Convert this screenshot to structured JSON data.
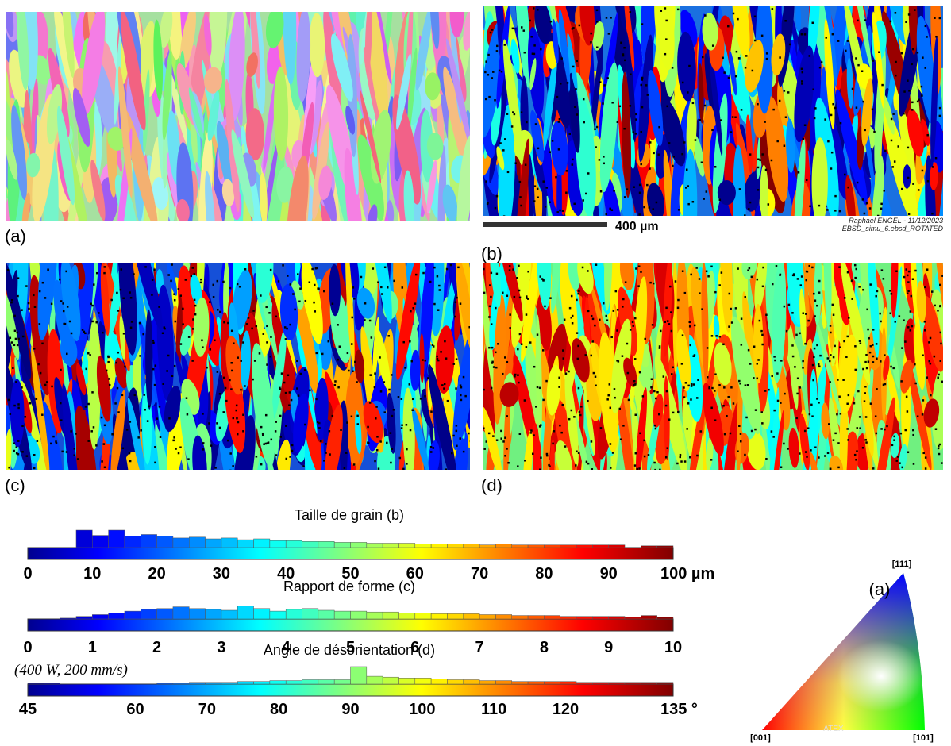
{
  "panels": [
    {
      "label": "(a)"
    },
    {
      "label": "(b)"
    },
    {
      "label": "(c)"
    },
    {
      "label": "(d)"
    }
  ],
  "scale_bar": {
    "label": "400 µm"
  },
  "credit": [
    "Raphael ENGEL - 11/12/2023",
    "EBSD_simu_6.ebsd_ROTATED"
  ],
  "colorbars": [
    {
      "title": "Taille de grain (b)",
      "lim": [
        0,
        100
      ],
      "ticks": [
        0,
        10,
        20,
        30,
        40,
        50,
        60,
        70,
        80,
        90,
        {
          "value": 100,
          "label": "100 µm"
        }
      ],
      "bins": [
        0,
        2.5,
        5,
        7.5,
        10,
        12.5,
        15,
        17.5,
        20,
        22.5,
        25,
        27.5,
        30,
        32.5,
        35,
        37.5,
        40,
        42.5,
        45,
        47.5,
        50,
        52.5,
        55,
        57.5,
        60,
        62.5,
        65,
        67.5,
        70,
        72.5,
        75,
        77.5,
        80,
        82.5,
        85,
        87.5,
        90,
        92.5,
        95,
        97.5,
        100
      ],
      "counts": [
        0,
        0,
        0,
        20,
        14,
        20,
        13,
        15,
        13,
        11,
        12,
        10,
        11,
        9,
        10,
        8,
        8,
        7,
        7,
        6,
        6,
        5,
        5,
        5,
        4,
        4,
        4,
        4,
        3,
        4,
        3,
        3,
        3,
        3,
        3,
        3,
        3,
        0,
        2,
        2
      ]
    },
    {
      "title": "Rapport de forme (c)",
      "lim": [
        0,
        10
      ],
      "ticks": [
        0,
        1,
        2,
        3,
        4,
        5,
        6,
        7,
        8,
        9,
        10
      ],
      "bins": [
        0,
        0.25,
        0.5,
        0.75,
        1,
        1.25,
        1.5,
        1.75,
        2,
        2.25,
        2.5,
        2.75,
        3,
        3.25,
        3.5,
        3.75,
        4,
        4.25,
        4.5,
        4.75,
        5,
        5.25,
        5.5,
        5.75,
        6,
        6.25,
        6.5,
        6.75,
        7,
        7.25,
        7.5,
        7.75,
        8,
        8.25,
        8.5,
        8.75,
        9,
        9.25,
        9.5,
        9.75,
        10
      ],
      "counts": [
        0,
        0,
        1,
        3,
        5,
        7,
        9,
        11,
        12,
        14,
        12,
        11,
        10,
        15,
        12,
        9,
        11,
        12,
        10,
        9,
        9,
        8,
        8,
        7,
        7,
        6,
        6,
        6,
        5,
        5,
        4,
        4,
        4,
        3,
        3,
        3,
        3,
        2,
        4,
        2
      ]
    },
    {
      "title": "Angle de désorientation (d)",
      "lim": [
        45,
        135
      ],
      "ticks": [
        45,
        60,
        70,
        80,
        90,
        100,
        110,
        120,
        {
          "value": 135,
          "label": "135 °"
        }
      ],
      "bins": [
        45,
        47.25,
        49.5,
        51.75,
        54,
        56.25,
        58.5,
        60.75,
        63,
        65.25,
        67.5,
        69.75,
        72,
        74.25,
        76.5,
        78.75,
        81,
        83.25,
        85.5,
        87.75,
        90,
        92.25,
        94.5,
        96.75,
        99,
        101.25,
        103.5,
        105.75,
        108,
        110.25,
        112.5,
        114.75,
        117,
        119.25,
        121.5,
        123.75,
        126,
        128.25,
        130.5,
        132.75,
        135
      ],
      "counts": [
        1,
        1,
        0,
        0,
        0,
        0,
        0,
        0,
        1,
        1,
        2,
        2,
        2,
        3,
        3,
        4,
        4,
        5,
        5,
        5,
        20,
        9,
        8,
        7,
        7,
        6,
        5,
        5,
        4,
        4,
        3,
        3,
        3,
        3,
        2,
        2,
        2,
        2,
        2,
        2
      ]
    }
  ],
  "condition": "(400 W, 200 mm/s)",
  "ipf": {
    "label": "(a)",
    "corner_001": "[001]",
    "corner_101": "[101]",
    "corner_111": "[111]",
    "watermark": "ATEX"
  }
}
